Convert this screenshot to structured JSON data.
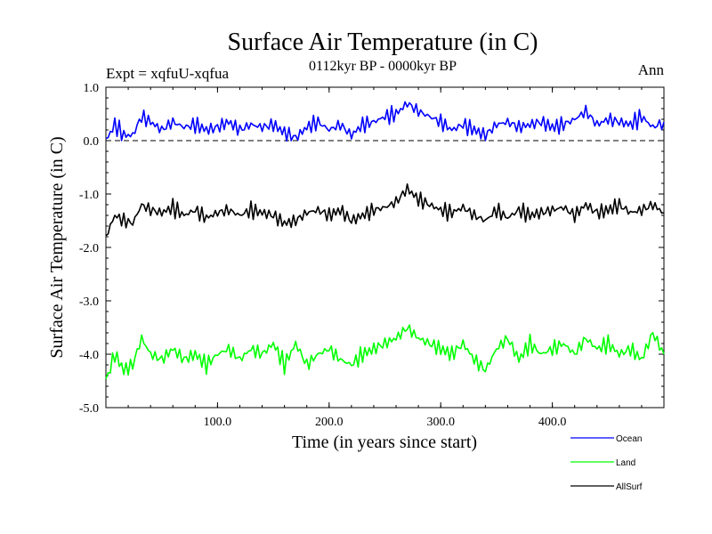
{
  "chart_data": {
    "type": "line",
    "title": "Surface Air Temperature (in C)",
    "subtitle": "0112kyr BP - 0000kyr BP",
    "experiment_label": "Expt = xqfuU-xqfua",
    "season_label": "Ann",
    "xlabel": "Time (in years since start)",
    "ylabel": "Surface Air Temperature (in C)",
    "xlim": [
      0,
      500
    ],
    "ylim": [
      -5.0,
      1.0
    ],
    "xticks": [
      {
        "value": 100,
        "label": "100.0"
      },
      {
        "value": 200,
        "label": "200.0"
      },
      {
        "value": 300,
        "label": "300.0"
      },
      {
        "value": 400,
        "label": "400.0"
      }
    ],
    "yticks": [
      {
        "value": 1.0,
        "label": "1.0"
      },
      {
        "value": 0.0,
        "label": "0.0"
      },
      {
        "value": -1.0,
        "label": "-1.0"
      },
      {
        "value": -2.0,
        "label": "-2.0"
      },
      {
        "value": -3.0,
        "label": "-3.0"
      },
      {
        "value": -4.0,
        "label": "-4.0"
      },
      {
        "value": -5.0,
        "label": "-5.0"
      }
    ],
    "reference_line": {
      "value": 0.0,
      "style": "dashed"
    },
    "series": [
      {
        "name": "Ocean",
        "color": "#0000ff",
        "x": [
          0,
          8,
          16,
          24,
          32,
          40,
          50,
          60,
          70,
          80,
          90,
          100,
          110,
          120,
          130,
          140,
          150,
          160,
          170,
          180,
          190,
          200,
          210,
          220,
          230,
          240,
          250,
          260,
          270,
          280,
          290,
          300,
          310,
          320,
          330,
          340,
          350,
          360,
          370,
          380,
          390,
          400,
          410,
          420,
          430,
          440,
          450,
          460,
          470,
          480,
          490,
          500
        ],
        "values": [
          0.0,
          0.3,
          0.1,
          0.1,
          0.45,
          0.35,
          0.2,
          0.35,
          0.25,
          0.3,
          0.2,
          0.25,
          0.35,
          0.2,
          0.3,
          0.25,
          0.3,
          0.15,
          0.05,
          0.25,
          0.35,
          0.2,
          0.3,
          0.1,
          0.3,
          0.35,
          0.45,
          0.5,
          0.7,
          0.55,
          0.45,
          0.35,
          0.2,
          0.3,
          0.2,
          0.1,
          0.3,
          0.35,
          0.25,
          0.3,
          0.35,
          0.25,
          0.3,
          0.4,
          0.55,
          0.3,
          0.4,
          0.35,
          0.3,
          0.45,
          0.25,
          0.35
        ]
      },
      {
        "name": "Land",
        "color": "#00ff00",
        "x": [
          0,
          8,
          16,
          24,
          32,
          40,
          50,
          60,
          70,
          80,
          90,
          100,
          110,
          120,
          130,
          140,
          150,
          160,
          170,
          180,
          190,
          200,
          210,
          220,
          230,
          240,
          250,
          260,
          270,
          280,
          290,
          300,
          310,
          320,
          330,
          340,
          350,
          360,
          370,
          380,
          390,
          400,
          410,
          420,
          430,
          440,
          450,
          460,
          470,
          480,
          490,
          500
        ],
        "values": [
          -4.5,
          -4.0,
          -4.3,
          -4.2,
          -3.7,
          -4.0,
          -4.1,
          -3.9,
          -4.1,
          -4.0,
          -4.2,
          -4.0,
          -3.9,
          -4.1,
          -3.9,
          -4.0,
          -3.8,
          -4.2,
          -3.8,
          -4.2,
          -4.0,
          -3.9,
          -4.1,
          -4.2,
          -4.0,
          -3.9,
          -3.8,
          -3.7,
          -3.5,
          -3.7,
          -3.8,
          -3.9,
          -4.0,
          -3.8,
          -4.1,
          -4.3,
          -3.9,
          -3.7,
          -4.1,
          -3.8,
          -4.0,
          -3.9,
          -3.8,
          -4.0,
          -3.7,
          -3.9,
          -3.8,
          -4.0,
          -3.9,
          -4.1,
          -3.6,
          -4.0
        ]
      },
      {
        "name": "AllSurf",
        "color": "#000000",
        "x": [
          0,
          8,
          16,
          24,
          32,
          40,
          50,
          60,
          70,
          80,
          90,
          100,
          110,
          120,
          130,
          140,
          150,
          160,
          170,
          180,
          190,
          200,
          210,
          220,
          230,
          240,
          250,
          260,
          270,
          280,
          290,
          300,
          310,
          320,
          330,
          340,
          350,
          360,
          370,
          380,
          390,
          400,
          410,
          420,
          430,
          440,
          450,
          460,
          470,
          480,
          490,
          500
        ],
        "values": [
          -1.8,
          -1.4,
          -1.5,
          -1.55,
          -1.2,
          -1.3,
          -1.35,
          -1.25,
          -1.4,
          -1.3,
          -1.45,
          -1.35,
          -1.3,
          -1.4,
          -1.3,
          -1.35,
          -1.4,
          -1.55,
          -1.5,
          -1.35,
          -1.3,
          -1.4,
          -1.3,
          -1.5,
          -1.4,
          -1.3,
          -1.25,
          -1.15,
          -0.9,
          -1.1,
          -1.2,
          -1.3,
          -1.35,
          -1.25,
          -1.4,
          -1.5,
          -1.3,
          -1.45,
          -1.3,
          -1.4,
          -1.35,
          -1.3,
          -1.25,
          -1.4,
          -1.2,
          -1.35,
          -1.3,
          -1.2,
          -1.35,
          -1.3,
          -1.2,
          -1.35
        ]
      }
    ],
    "legend": {
      "placement": "bottom-right",
      "entries": [
        {
          "name": "Ocean",
          "color": "#0000ff"
        },
        {
          "name": "Land",
          "color": "#00ff00"
        },
        {
          "name": "AllSurf",
          "color": "#000000"
        }
      ]
    }
  }
}
